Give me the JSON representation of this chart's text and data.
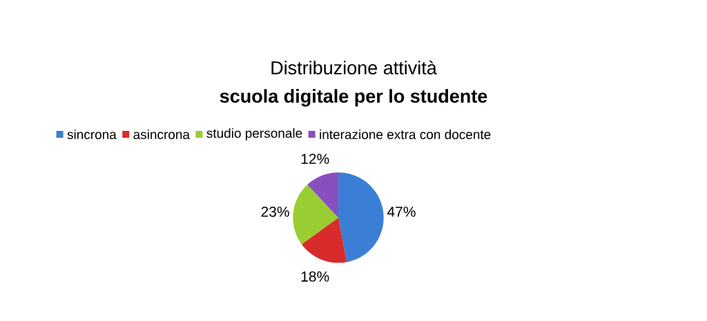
{
  "chart_data": {
    "type": "pie",
    "title": "Distribuzione attività",
    "subtitle": "scuola digitale per lo studente",
    "categories": [
      "sincrona",
      "asincrona",
      "studio personale",
      "interazione extra con docente"
    ],
    "values": [
      47,
      18,
      23,
      12
    ],
    "value_labels": [
      "47%",
      "18%",
      "23%",
      "12%"
    ],
    "colors": [
      "#3a7fd5",
      "#d92b2b",
      "#9acd32",
      "#8a4fbf"
    ],
    "legend": "top"
  }
}
